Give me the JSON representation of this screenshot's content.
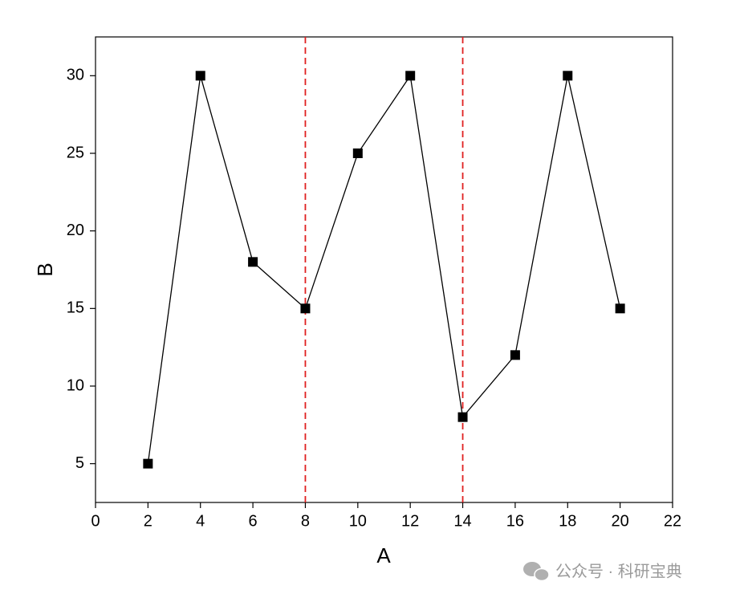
{
  "chart_data": {
    "type": "line",
    "x_label": "A",
    "y_label": "B",
    "x": [
      2,
      4,
      6,
      8,
      10,
      12,
      14,
      16,
      18,
      20
    ],
    "series": [
      {
        "color": "#000000",
        "values": [
          5,
          30,
          18,
          15,
          25,
          30,
          8,
          12,
          30,
          15
        ]
      }
    ],
    "xlim": [
      0,
      22
    ],
    "xticks": [
      0,
      2,
      4,
      6,
      8,
      10,
      12,
      14,
      16,
      18,
      20,
      22
    ],
    "ylim": [
      2.5,
      32.5
    ],
    "yticks": [
      5,
      10,
      15,
      20,
      25,
      30
    ],
    "vlines": [
      8,
      14
    ],
    "vline_color": "#e02020",
    "watermark": "公众号 · 科研宝典"
  }
}
